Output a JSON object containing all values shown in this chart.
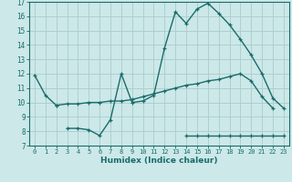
{
  "xlabel": "Humidex (Indice chaleur)",
  "ylabel": "",
  "background_color": "#cce8e8",
  "grid_color": "#aacccc",
  "line_color": "#1a6b6b",
  "xlim": [
    -0.5,
    23.5
  ],
  "ylim": [
    7,
    17
  ],
  "xticks": [
    0,
    1,
    2,
    3,
    4,
    5,
    6,
    7,
    8,
    9,
    10,
    11,
    12,
    13,
    14,
    15,
    16,
    17,
    18,
    19,
    20,
    21,
    22,
    23
  ],
  "yticks": [
    7,
    8,
    9,
    10,
    11,
    12,
    13,
    14,
    15,
    16,
    17
  ],
  "series": [
    {
      "x": [
        0,
        1,
        2
      ],
      "y": [
        11.9,
        10.5,
        9.8
      ]
    },
    {
      "x": [
        3,
        4,
        5,
        6,
        7,
        8,
        9,
        10,
        11,
        12,
        13,
        14,
        15,
        16,
        17,
        18,
        19,
        20,
        21,
        22,
        23
      ],
      "y": [
        8.2,
        8.2,
        8.1,
        7.7,
        8.8,
        12.0,
        10.0,
        10.1,
        10.5,
        13.8,
        16.3,
        15.5,
        16.5,
        16.9,
        16.2,
        15.4,
        14.4,
        13.3,
        12.0,
        10.3,
        9.6
      ]
    },
    {
      "x": [
        2,
        3,
        4,
        5,
        6,
        7,
        8,
        9,
        10,
        11,
        12,
        13,
        14,
        15,
        16,
        17,
        18,
        19,
        20,
        21,
        22
      ],
      "y": [
        9.8,
        9.9,
        9.9,
        10.0,
        10.0,
        10.1,
        10.1,
        10.2,
        10.4,
        10.6,
        10.8,
        11.0,
        11.2,
        11.3,
        11.5,
        11.6,
        11.8,
        12.0,
        11.5,
        10.4,
        9.6
      ]
    },
    {
      "x": [
        14,
        15,
        16,
        17,
        18,
        19,
        20,
        21,
        22,
        23
      ],
      "y": [
        7.7,
        7.7,
        7.7,
        7.7,
        7.7,
        7.7,
        7.7,
        7.7,
        7.7,
        7.7
      ]
    }
  ]
}
